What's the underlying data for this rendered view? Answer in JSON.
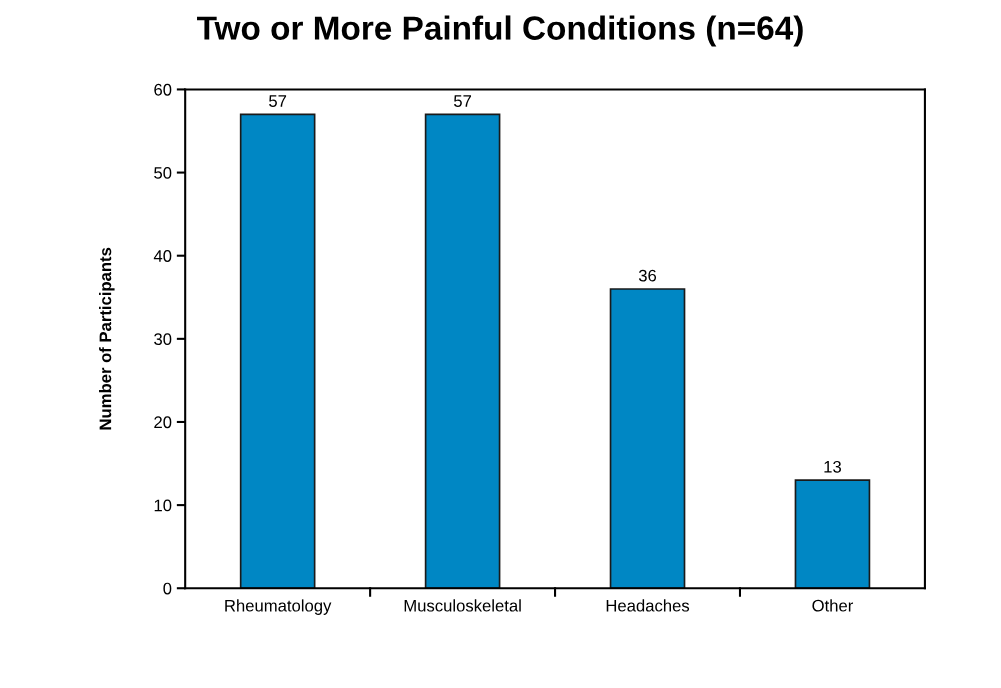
{
  "chart_data": {
    "type": "bar",
    "title": "Two or More Painful Conditions (n=64)",
    "ylabel": "Number of Participants",
    "categories": [
      "Rheumatology",
      "Musculoskeletal",
      "Headaches",
      "Other"
    ],
    "values": [
      57,
      57,
      36,
      13
    ],
    "color": "#0087c4",
    "ylim": [
      0,
      60
    ],
    "yticks": [
      0,
      10,
      20,
      30,
      40,
      50,
      60
    ],
    "data_labels": true,
    "grid": false
  }
}
